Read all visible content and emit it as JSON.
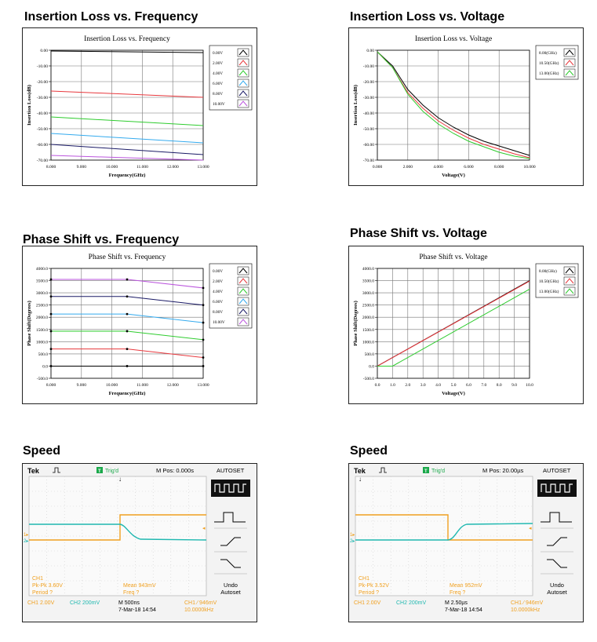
{
  "sections": {
    "il_freq": "Insertion Loss vs. Frequency",
    "il_volt": "Insertion Loss vs. Voltage",
    "ps_freq": "Phase Shift vs. Frequency",
    "ps_volt": "Phase Shift vs. Voltage",
    "speed_left": "Speed",
    "speed_right": "Speed"
  },
  "chart_data": [
    {
      "id": "il_freq",
      "type": "line",
      "title": "Insertion Loss vs. Frequency",
      "xlabel": "Frequency(GHz)",
      "ylabel": "Insertion Loss(dB)",
      "xlim": [
        8,
        13
      ],
      "ylim": [
        -70,
        0
      ],
      "xticks": [
        8,
        9,
        10,
        11,
        12,
        13
      ],
      "xtick_labels": [
        "8.000",
        "9.000",
        "10.000",
        "11.000",
        "12.000",
        "13.000"
      ],
      "yticks": [
        0,
        -10,
        -20,
        -30,
        -40,
        -50,
        -60,
        -70
      ],
      "ytick_labels": [
        "0.00",
        "-10.00",
        "-20.00",
        "-30.00",
        "-40.00",
        "-50.00",
        "-60.00",
        "-70.00"
      ],
      "grid": true,
      "legend_position": "right",
      "series": [
        {
          "name": "0.00V",
          "color": "#000000",
          "x": [
            8,
            13
          ],
          "y": [
            -0.5,
            -1.5
          ]
        },
        {
          "name": "2.00V",
          "color": "#e8383d",
          "x": [
            8,
            13
          ],
          "y": [
            -26,
            -30
          ]
        },
        {
          "name": "4.00V",
          "color": "#2ecc2e",
          "x": [
            8,
            13
          ],
          "y": [
            -42.5,
            -48
          ]
        },
        {
          "name": "6.00V",
          "color": "#33aaee",
          "x": [
            8,
            13
          ],
          "y": [
            -53,
            -59
          ]
        },
        {
          "name": "8.00V",
          "color": "#1a1a66",
          "x": [
            8,
            13
          ],
          "y": [
            -60,
            -66.5
          ]
        },
        {
          "name": "10.00V",
          "color": "#bb55dd",
          "x": [
            8,
            13
          ],
          "y": [
            -67,
            -70
          ]
        }
      ]
    },
    {
      "id": "il_volt",
      "type": "line",
      "title": "Insertion Loss vs. Voltage",
      "xlabel": "Voltage(V)",
      "ylabel": "Insertion Loss(dB)",
      "xlim": [
        0,
        10
      ],
      "ylim": [
        -70,
        0
      ],
      "xticks": [
        0,
        2,
        4,
        6,
        8,
        10
      ],
      "xtick_labels": [
        "0.000",
        "2.000",
        "4.000",
        "6.000",
        "8.000",
        "10.000"
      ],
      "yticks": [
        0,
        -10,
        -20,
        -30,
        -40,
        -50,
        -60,
        -70
      ],
      "ytick_labels": [
        "0.00",
        "-10.00",
        "-20.00",
        "-30.00",
        "-40.00",
        "-50.00",
        "-60.00",
        "-70.00"
      ],
      "grid": true,
      "legend_position": "right",
      "series": [
        {
          "name": "8.00(GHz)",
          "color": "#000000",
          "x": [
            0,
            1,
            2,
            3,
            4,
            5,
            6,
            7,
            8,
            9,
            10
          ],
          "y": [
            -1,
            -10,
            -25,
            -35,
            -43,
            -49,
            -54,
            -58,
            -61,
            -64,
            -67
          ]
        },
        {
          "name": "10.50(GHz)",
          "color": "#e8383d",
          "x": [
            0,
            1,
            2,
            3,
            4,
            5,
            6,
            7,
            8,
            9,
            10
          ],
          "y": [
            -1,
            -11,
            -27,
            -37,
            -45,
            -51,
            -56,
            -60,
            -63,
            -66,
            -68.5
          ]
        },
        {
          "name": "13.00(GHz)",
          "color": "#2ecc2e",
          "x": [
            0,
            1,
            2,
            3,
            4,
            5,
            6,
            7,
            8,
            9,
            10
          ],
          "y": [
            -1,
            -11,
            -28,
            -39,
            -47,
            -53,
            -58,
            -61.5,
            -65,
            -67.5,
            -69
          ]
        }
      ]
    },
    {
      "id": "ps_freq",
      "type": "line",
      "title": "Phase Shift vs. Frequency",
      "xlabel": "Frequency(GHz)",
      "ylabel": "Phase Shift(Degrees)",
      "xlim": [
        8,
        13
      ],
      "ylim": [
        -500,
        4000
      ],
      "xticks": [
        8,
        9,
        10,
        11,
        12,
        13
      ],
      "xtick_labels": [
        "8.000",
        "9.000",
        "10.000",
        "11.000",
        "12.000",
        "13.000"
      ],
      "yticks": [
        4000,
        3500,
        3000,
        2500,
        2000,
        1500,
        1000,
        500,
        0,
        -500
      ],
      "ytick_labels": [
        "4000.0",
        "3500.0",
        "3000.0",
        "2500.0",
        "2000.0",
        "1500.0",
        "1000.0",
        "500.0",
        "0.0",
        "-500.0"
      ],
      "grid": true,
      "legend_position": "right",
      "series": [
        {
          "name": "0.00V",
          "color": "#000000",
          "x": [
            8,
            10.5,
            13
          ],
          "y": [
            0,
            0,
            0
          ]
        },
        {
          "name": "2.00V",
          "color": "#e8383d",
          "x": [
            8,
            10.5,
            13
          ],
          "y": [
            700,
            700,
            350
          ]
        },
        {
          "name": "4.00V",
          "color": "#2ecc2e",
          "x": [
            8,
            10.5,
            13
          ],
          "y": [
            1430,
            1430,
            1080
          ]
        },
        {
          "name": "6.00V",
          "color": "#33aaee",
          "x": [
            8,
            10.5,
            13
          ],
          "y": [
            2130,
            2130,
            1780
          ]
        },
        {
          "name": "8.00V",
          "color": "#1a1a66",
          "x": [
            8,
            10.5,
            13
          ],
          "y": [
            2850,
            2850,
            2500
          ]
        },
        {
          "name": "10.00V",
          "color": "#bb55dd",
          "x": [
            8,
            10.5,
            13
          ],
          "y": [
            3550,
            3550,
            3200
          ]
        }
      ]
    },
    {
      "id": "ps_volt",
      "type": "line",
      "title": "Phase Shift vs. Voltage",
      "xlabel": "Voltage(V)",
      "ylabel": "Phase Shift(Degrees)",
      "xlim": [
        0,
        10
      ],
      "ylim": [
        -500,
        4000
      ],
      "xticks": [
        0,
        1,
        2,
        3,
        4,
        5,
        6,
        7,
        8,
        9,
        10
      ],
      "xtick_labels": [
        "0.0",
        "1.0",
        "2.0",
        "3.0",
        "4.0",
        "5.0",
        "6.0",
        "7.0",
        "8.0",
        "9.0",
        "10.0"
      ],
      "yticks": [
        4000,
        3500,
        3000,
        2500,
        2000,
        1500,
        1000,
        500,
        0,
        -500
      ],
      "ytick_labels": [
        "4000.0",
        "3500.0",
        "3000.0",
        "2500.0",
        "2000.0",
        "1500.0",
        "1000.0",
        "500.0",
        "0.0",
        "-500.0"
      ],
      "grid": true,
      "legend_position": "right",
      "series": [
        {
          "name": "8.00(GHz)",
          "color": "#000000",
          "x": [
            0,
            10
          ],
          "y": [
            0,
            3500
          ]
        },
        {
          "name": "10.50(GHz)",
          "color": "#e8383d",
          "x": [
            0,
            10
          ],
          "y": [
            0,
            3480
          ]
        },
        {
          "name": "13.00(GHz)",
          "color": "#2ecc2e",
          "x": [
            0,
            1,
            10
          ],
          "y": [
            0,
            0,
            3150
          ]
        }
      ]
    }
  ],
  "scopes": [
    {
      "brand": "Tek",
      "trig": "Trig'd",
      "mpos": "M Pos: 0.000s",
      "autoset": "AUTOSET",
      "ch1_meas1": "CH1",
      "ch1_meas2": "Pk-Pk 3.60V",
      "ch1_meas3": "Period ?",
      "mean": "Mean 943mV",
      "freq": "Freq ?",
      "undo": "Undo",
      "undo2": "Autoset",
      "ch1_scale": "CH1  2.00V",
      "ch2_scale": "CH2  200mV",
      "time_scale": "M 500ns",
      "date": "7-Mar-18 14:54",
      "trig_level": "CH1 ⁄  946mV",
      "trig_freq": "10.0000kHz",
      "colors": {
        "ch1": "#f0a020",
        "ch2": "#20b8b0"
      }
    },
    {
      "brand": "Tek",
      "trig": "Trig'd",
      "mpos": "M Pos: 20.00µs",
      "autoset": "AUTOSET",
      "ch1_meas1": "CH1",
      "ch1_meas2": "Pk-Pk 3.52V",
      "ch1_meas3": "Period ?",
      "mean": "Mean 952mV",
      "freq": "Freq ?",
      "undo": "Undo",
      "undo2": "Autoset",
      "ch1_scale": "CH1  2.00V",
      "ch2_scale": "CH2  200mV",
      "time_scale": "M 2.50µs",
      "date": "7-Mar-18 14:54",
      "trig_level": "CH1 ⁄  946mV",
      "trig_freq": "10.0000kHz",
      "colors": {
        "ch1": "#f0a020",
        "ch2": "#20b8b0"
      }
    }
  ]
}
